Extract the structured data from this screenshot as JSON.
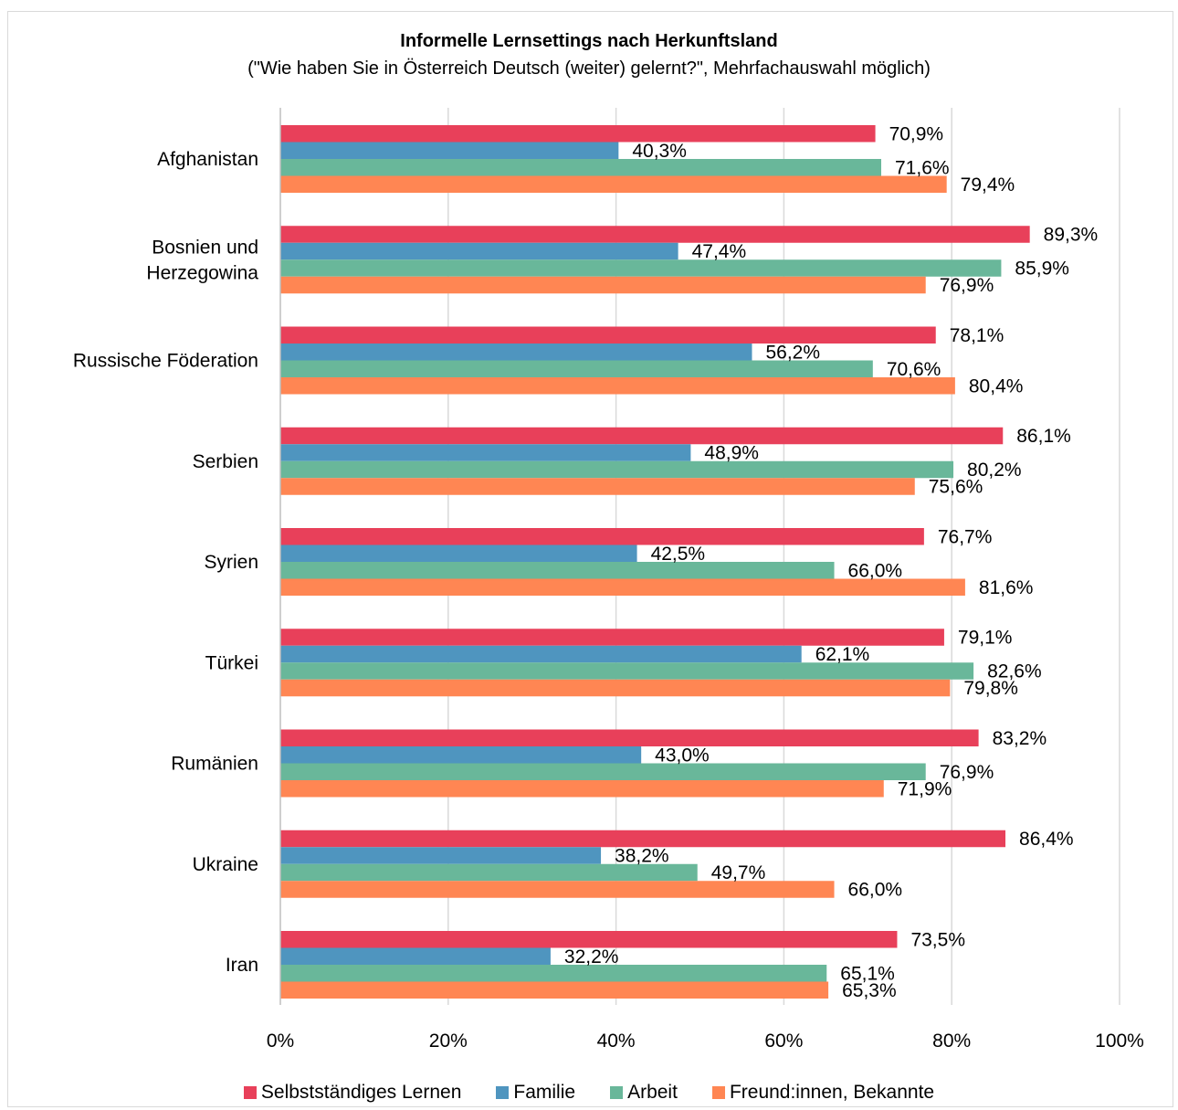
{
  "chart_data": {
    "type": "bar",
    "orientation": "horizontal",
    "title": "Informelle Lernsettings nach Herkunftsland",
    "subtitle": "(\"Wie haben Sie in Österreich Deutsch (weiter) gelernt?\", Mehrfachauswahl möglich)",
    "categories": [
      "Afghanistan",
      "Bosnien und Herzegowina",
      "Russische Föderation",
      "Serbien",
      "Syrien",
      "Türkei",
      "Rumänien",
      "Ukraine",
      "Iran"
    ],
    "category_lines": [
      [
        "Afghanistan"
      ],
      [
        "Bosnien und",
        "Herzegowina"
      ],
      [
        "Russische Föderation"
      ],
      [
        "Serbien"
      ],
      [
        "Syrien"
      ],
      [
        "Türkei"
      ],
      [
        "Rumänien"
      ],
      [
        "Ukraine"
      ],
      [
        "Iran"
      ]
    ],
    "series": [
      {
        "name": "Selbstständiges Lernen",
        "color": "#e8405a",
        "values": [
          70.9,
          89.3,
          78.1,
          86.1,
          76.7,
          79.1,
          83.2,
          86.4,
          73.5
        ],
        "labels": [
          "70,9%",
          "89,3%",
          "78,1%",
          "86,1%",
          "76,7%",
          "79,1%",
          "83,2%",
          "86,4%",
          "73,5%"
        ]
      },
      {
        "name": "Familie",
        "color": "#4f95bf",
        "values": [
          40.3,
          47.4,
          56.2,
          48.9,
          42.5,
          62.1,
          43.0,
          38.2,
          32.2
        ],
        "labels": [
          "40,3%",
          "47,4%",
          "56,2%",
          "48,9%",
          "42,5%",
          "62,1%",
          "43,0%",
          "38,2%",
          "32,2%"
        ]
      },
      {
        "name": "Arbeit",
        "color": "#69b79a",
        "values": [
          71.6,
          85.9,
          70.6,
          80.2,
          66.0,
          82.6,
          76.9,
          49.7,
          65.1
        ],
        "labels": [
          "71,6%",
          "85,9%",
          "70,6%",
          "80,2%",
          "66,0%",
          "82,6%",
          "76,9%",
          "49,7%",
          "65,1%"
        ]
      },
      {
        "name": "Freund:innen, Bekannte",
        "color": "#ff8653",
        "values": [
          79.4,
          76.9,
          80.4,
          75.6,
          81.6,
          79.8,
          71.9,
          66.0,
          65.3
        ],
        "labels": [
          "79,4%",
          "76,9%",
          "80,4%",
          "75,6%",
          "81,6%",
          "79,8%",
          "71,9%",
          "66,0%",
          "65,3%"
        ]
      }
    ],
    "xlim": [
      0,
      100
    ],
    "x_ticks": [
      0,
      20,
      40,
      60,
      80,
      100
    ],
    "x_tick_labels": [
      "0%",
      "20%",
      "40%",
      "60%",
      "80%",
      "100%"
    ],
    "grid": true,
    "legend_position": "bottom"
  }
}
